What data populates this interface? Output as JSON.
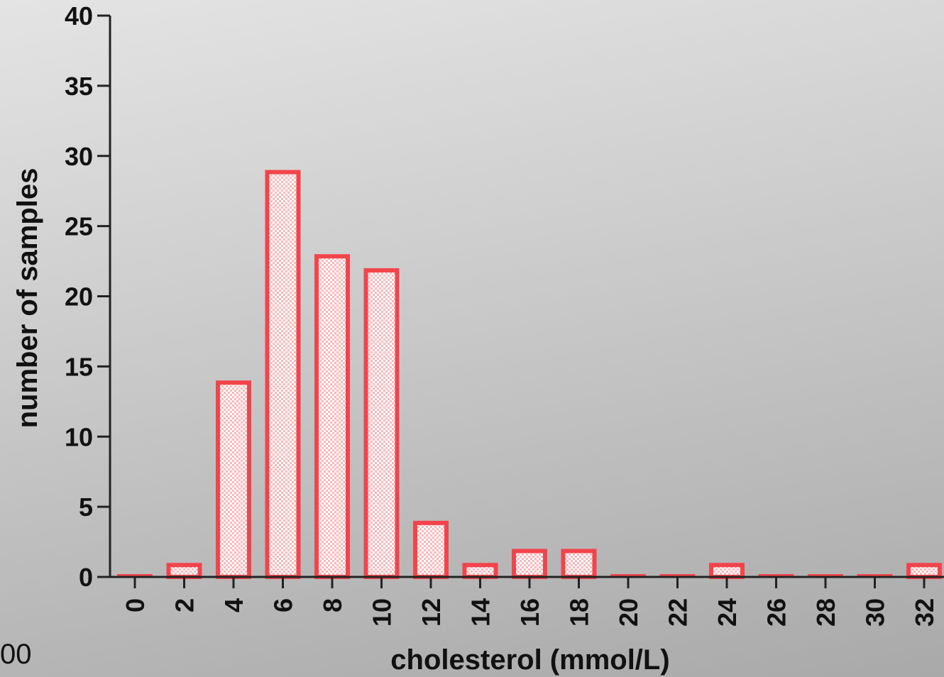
{
  "corner_text": "00",
  "colors": {
    "bar_fill": "#f7b8bb",
    "bar_pattern": "#ffffff",
    "bar_stroke": "#f2444b",
    "axis": "#222222"
  },
  "chart_data": {
    "type": "bar",
    "xlabel": "cholesterol (mmol/L)",
    "ylabel": "number of samples",
    "ylim": [
      0,
      40
    ],
    "yticks": [
      0,
      5,
      10,
      15,
      20,
      25,
      30,
      35,
      40
    ],
    "grid": false,
    "categories": [
      "0",
      "2",
      "4",
      "6",
      "8",
      "10",
      "12",
      "14",
      "16",
      "18",
      "20",
      "22",
      "24",
      "26",
      "28",
      "30",
      "32"
    ],
    "values": [
      0,
      1,
      14,
      29,
      23,
      22,
      4,
      1,
      2,
      2,
      0,
      0,
      1,
      0,
      0,
      0,
      1
    ]
  }
}
